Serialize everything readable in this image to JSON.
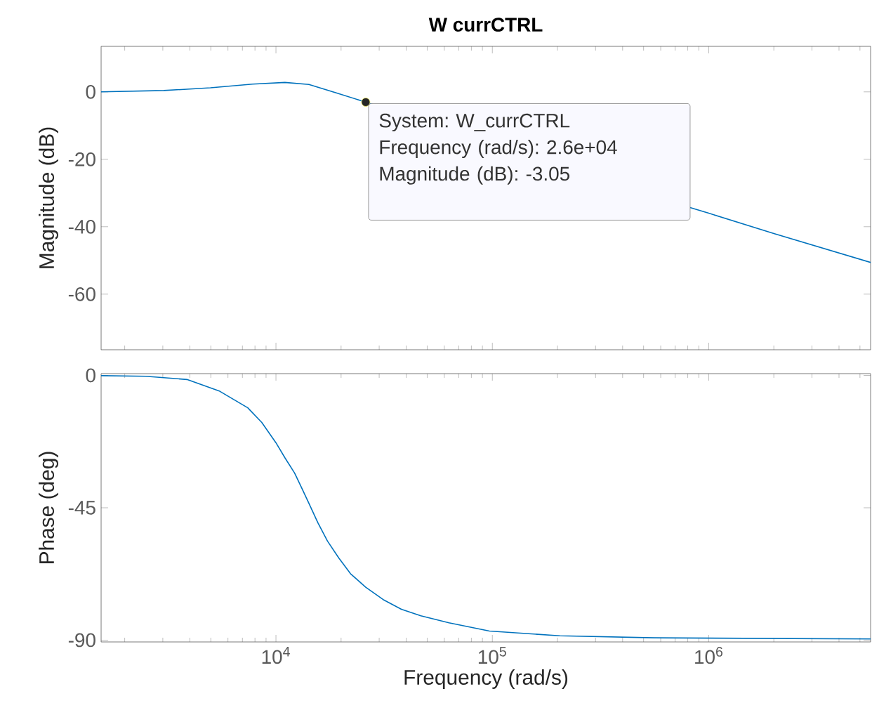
{
  "chart_data": [
    {
      "type": "line",
      "title": "W currCTRL",
      "ylabel": "Magnitude (dB)",
      "color": "#0072bd",
      "log": "x",
      "tick_labels": "y",
      "x": [
        1556,
        3030,
        4980,
        7800,
        11000,
        14200,
        19000,
        26000,
        820000,
        1000000,
        2000000,
        5600000
      ],
      "values": [
        0,
        0.4,
        1.2,
        2.3,
        2.8,
        2.2,
        -0.3,
        -3.05,
        -34.3,
        -36,
        -42,
        -50.6
      ],
      "xlim": [
        1556,
        5600000
      ],
      "ylim": [
        -76.5,
        13.5
      ],
      "xticks": [
        {
          "value": 10000,
          "label": null
        },
        {
          "value": 100000,
          "label": null
        },
        {
          "value": 1000000,
          "label": null
        }
      ],
      "yticks": [
        -60,
        -40,
        -20,
        0
      ],
      "annotations": [
        {
          "text": "System: W_currCTRL",
          "x": 26000,
          "y": -3.05
        },
        "Frequency (rad/s): 2.6e+04",
        "Magnitude (dB): -3.05"
      ]
    },
    {
      "type": "line",
      "xlabel": "Frequency  (rad/s)",
      "ylabel": "Phase (deg)",
      "color": "#0072bd",
      "log": "x",
      "x": [
        1556,
        2500,
        3880,
        5500,
        7410,
        8600,
        10000,
        11000,
        12200,
        13100,
        14200,
        15600,
        17300,
        19500,
        22100,
        26000,
        31300,
        38000,
        46700,
        63000,
        97000,
        205000,
        560000,
        5600000
      ],
      "values": [
        -0.1,
        -0.3,
        -1.4,
        -5.4,
        -11,
        -16,
        -22.9,
        -28,
        -33.2,
        -38,
        -43.5,
        -50,
        -56.3,
        -62,
        -67.4,
        -72,
        -76.2,
        -79.5,
        -81.7,
        -84.1,
        -86.9,
        -88.5,
        -89.2,
        -89.6
      ],
      "xlim": [
        1556,
        5600000
      ],
      "ylim": [
        -90.6,
        0.6
      ],
      "xticks": [
        {
          "value": 10000,
          "label": "10$^{4}$"
        },
        {
          "value": 100000,
          "label": "10$^{5}$"
        },
        {
          "value": 1000000,
          "label": "10$^{6}$"
        }
      ],
      "yticks": [
        -90,
        -45,
        0
      ]
    }
  ]
}
